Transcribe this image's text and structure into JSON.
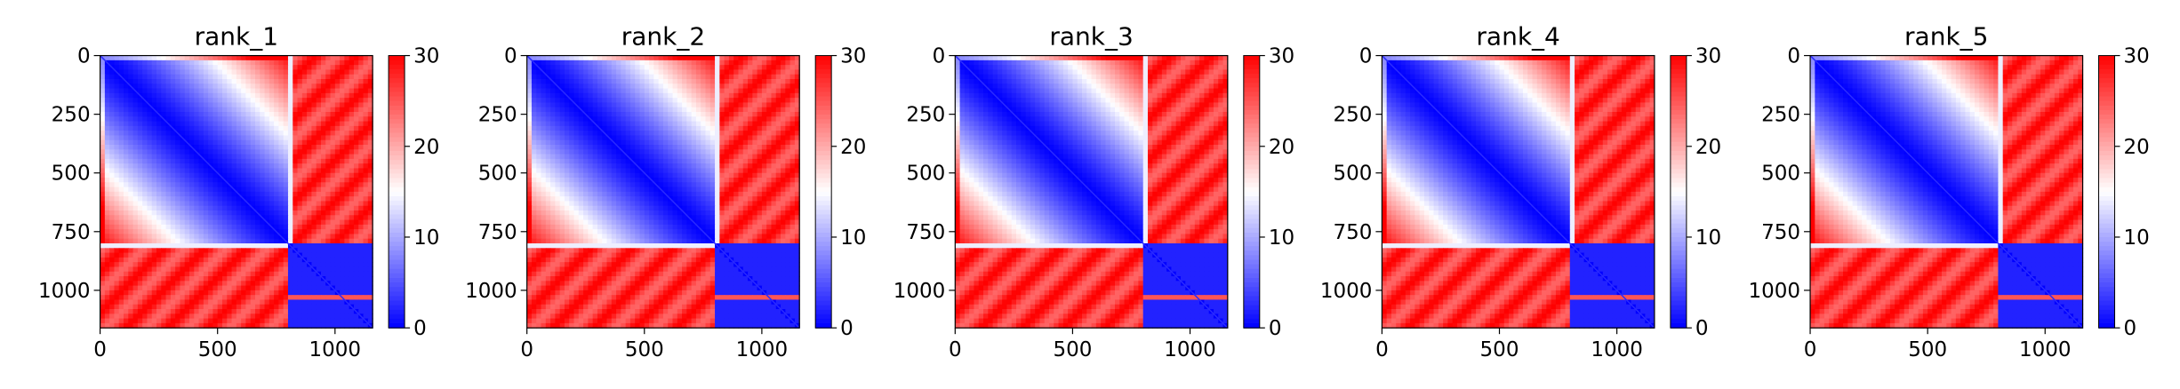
{
  "chart_data": [
    {
      "type": "heatmap",
      "title": "rank_1",
      "x_range": [
        0,
        1160
      ],
      "y_range": [
        0,
        1160
      ],
      "y_inverted": true,
      "block_boundary": 810,
      "x_ticks": [
        0,
        500,
        1000
      ],
      "y_ticks": [
        0,
        250,
        500,
        750,
        1000
      ],
      "x_tick_labels": [
        "0",
        "500",
        "1000"
      ],
      "y_tick_labels": [
        "0",
        "250",
        "500",
        "750",
        "1000"
      ],
      "colorbar": {
        "min": 0,
        "max": 30,
        "ticks": [
          "0",
          "10",
          "20",
          "30"
        ],
        "colormap": "bwr"
      }
    },
    {
      "type": "heatmap",
      "title": "rank_2",
      "x_range": [
        0,
        1160
      ],
      "y_range": [
        0,
        1160
      ],
      "y_inverted": true,
      "block_boundary": 810,
      "x_ticks": [
        0,
        500,
        1000
      ],
      "y_ticks": [
        0,
        250,
        500,
        750,
        1000
      ],
      "x_tick_labels": [
        "0",
        "500",
        "1000"
      ],
      "y_tick_labels": [
        "0",
        "250",
        "500",
        "750",
        "1000"
      ],
      "colorbar": {
        "min": 0,
        "max": 30,
        "ticks": [
          "0",
          "10",
          "20",
          "30"
        ],
        "colormap": "bwr"
      }
    },
    {
      "type": "heatmap",
      "title": "rank_3",
      "x_range": [
        0,
        1160
      ],
      "y_range": [
        0,
        1160
      ],
      "y_inverted": true,
      "block_boundary": 810,
      "x_ticks": [
        0,
        500,
        1000
      ],
      "y_ticks": [
        0,
        250,
        500,
        750,
        1000
      ],
      "x_tick_labels": [
        "0",
        "500",
        "1000"
      ],
      "y_tick_labels": [
        "0",
        "250",
        "500",
        "750",
        "1000"
      ],
      "colorbar": {
        "min": 0,
        "max": 30,
        "ticks": [
          "0",
          "10",
          "20",
          "30"
        ],
        "colormap": "bwr"
      }
    },
    {
      "type": "heatmap",
      "title": "rank_4",
      "x_range": [
        0,
        1160
      ],
      "y_range": [
        0,
        1160
      ],
      "y_inverted": true,
      "block_boundary": 810,
      "x_ticks": [
        0,
        500,
        1000
      ],
      "y_ticks": [
        0,
        250,
        500,
        750,
        1000
      ],
      "x_tick_labels": [
        "0",
        "500",
        "1000"
      ],
      "y_tick_labels": [
        "0",
        "250",
        "500",
        "750",
        "1000"
      ],
      "colorbar": {
        "min": 0,
        "max": 30,
        "ticks": [
          "0",
          "10",
          "20",
          "30"
        ],
        "colormap": "bwr"
      }
    },
    {
      "type": "heatmap",
      "title": "rank_5",
      "x_range": [
        0,
        1160
      ],
      "y_range": [
        0,
        1160
      ],
      "y_inverted": true,
      "block_boundary": 810,
      "x_ticks": [
        0,
        500,
        1000
      ],
      "y_ticks": [
        0,
        250,
        500,
        750,
        1000
      ],
      "x_tick_labels": [
        "0",
        "500",
        "1000"
      ],
      "y_tick_labels": [
        "0",
        "250",
        "500",
        "750",
        "1000"
      ],
      "colorbar": {
        "min": 0,
        "max": 30,
        "ticks": [
          "0",
          "10",
          "20",
          "30"
        ],
        "colormap": "bwr"
      }
    }
  ]
}
